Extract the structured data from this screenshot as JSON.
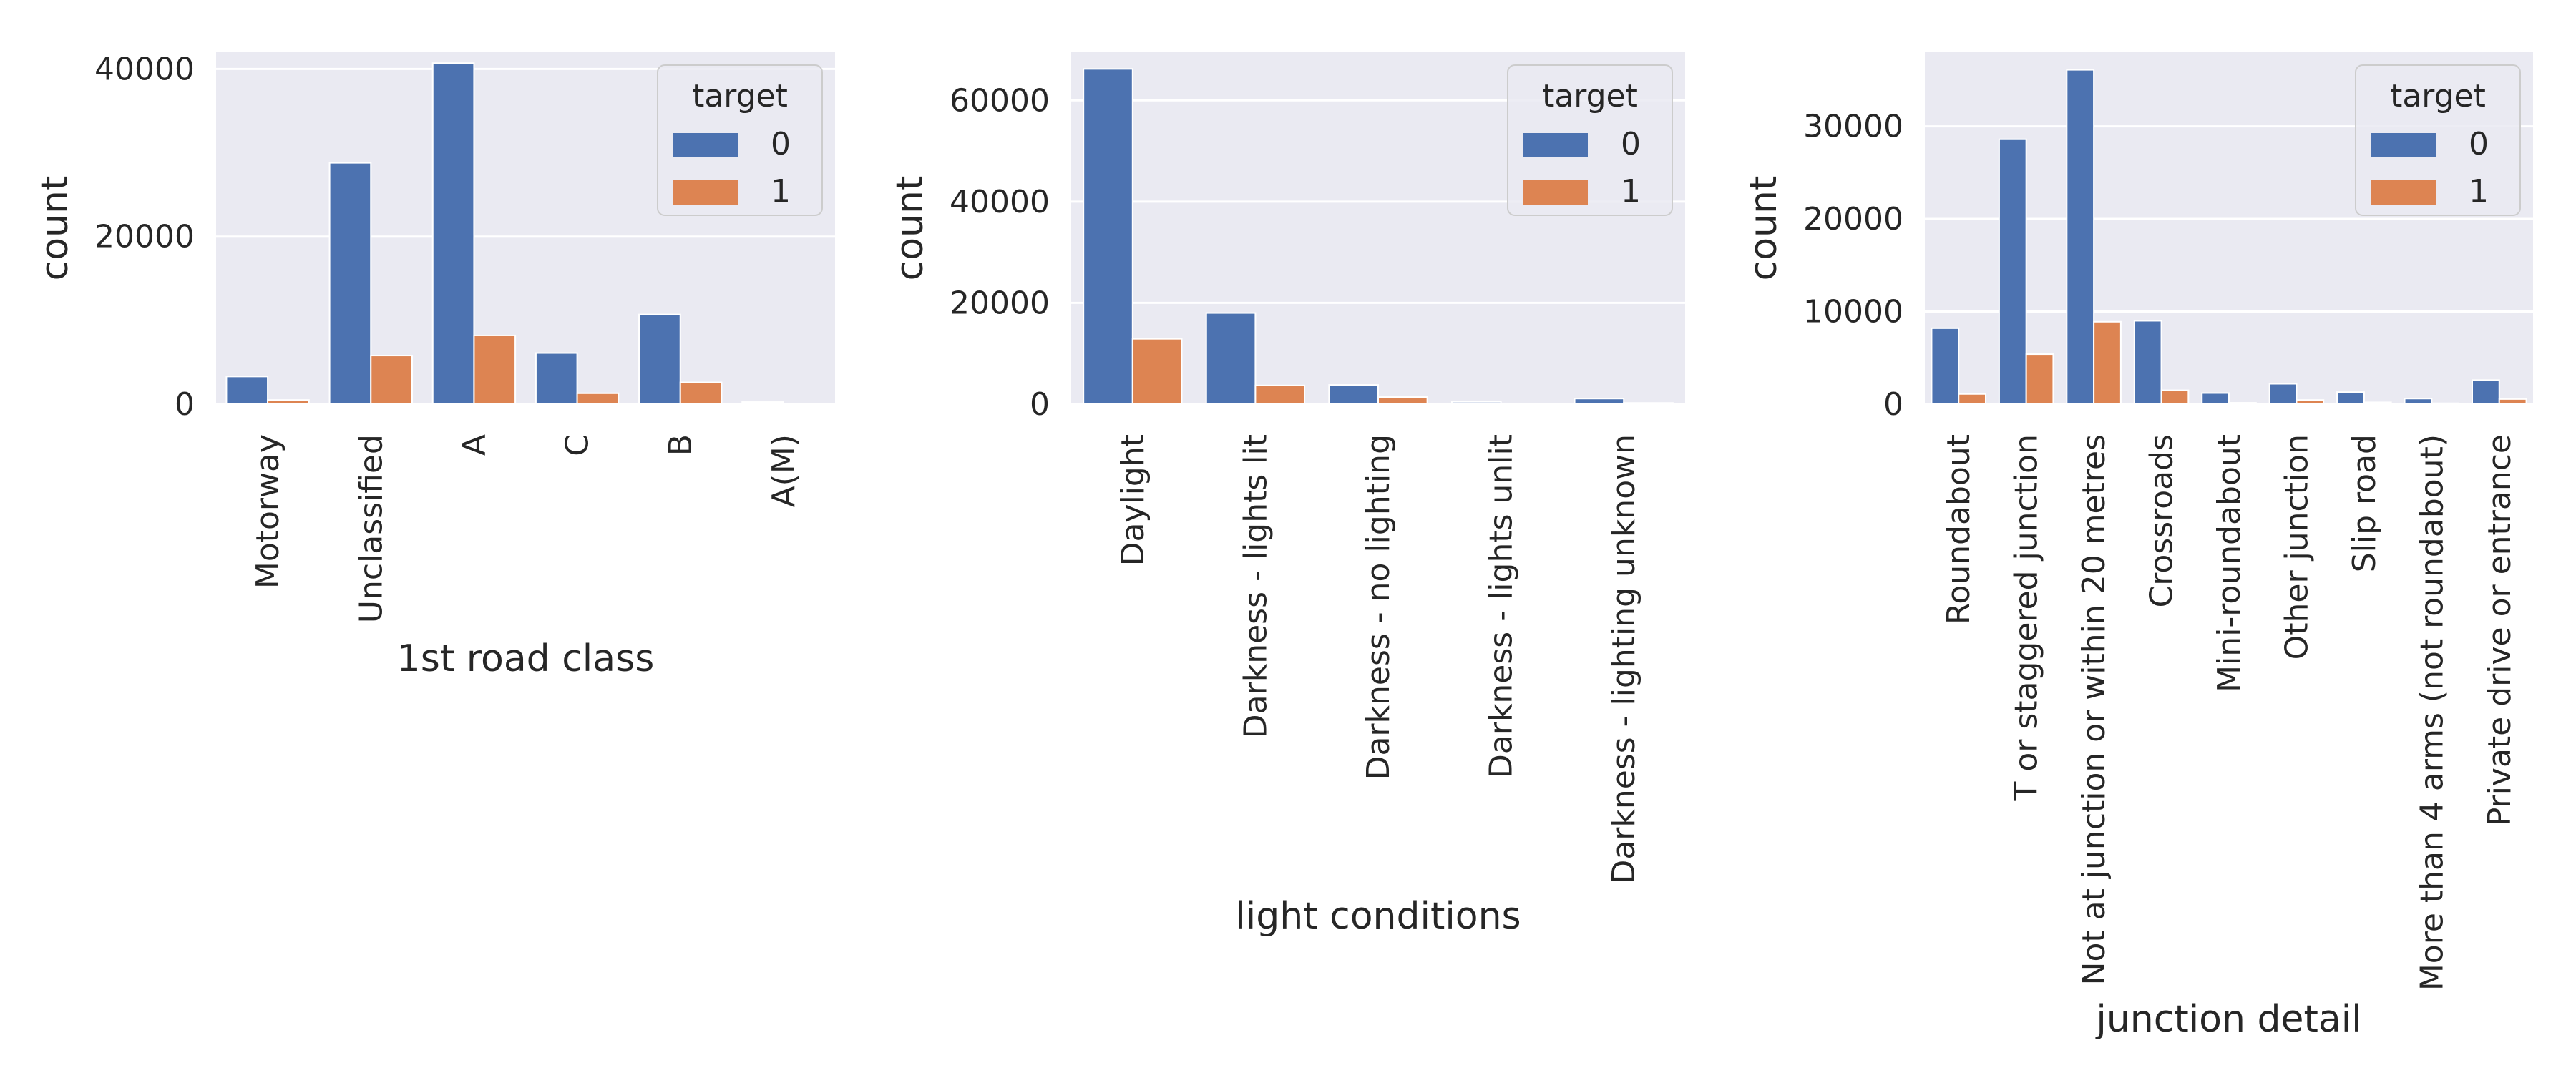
{
  "legend_title": "target",
  "colors": {
    "0": "#4C72B0",
    "1": "#DD8452",
    "plot_bg": "#EAEAF2",
    "grid": "#FFFFFF"
  },
  "chart_data": [
    {
      "type": "bar",
      "xlabel": "1st road class",
      "ylabel": "count",
      "ylim": [
        0,
        42000
      ],
      "yticks": [
        0,
        20000,
        40000
      ],
      "grid": true,
      "legend_position": "top-right",
      "categories": [
        "Motorway",
        "Unclassified",
        "A",
        "C",
        "B",
        "A(M)"
      ],
      "series": [
        {
          "name": "0",
          "values": [
            3300,
            28800,
            40700,
            6100,
            10700,
            250
          ]
        },
        {
          "name": "1",
          "values": [
            500,
            5800,
            8200,
            1300,
            2600,
            50
          ]
        }
      ]
    },
    {
      "type": "bar",
      "xlabel": "light conditions",
      "ylabel": "count",
      "ylim": [
        0,
        69500
      ],
      "yticks": [
        0,
        20000,
        40000,
        60000
      ],
      "grid": true,
      "legend_position": "top-right",
      "categories": [
        "Daylight",
        "Darkness - lights lit",
        "Darkness - no lighting",
        "Darkness - lights unlit",
        "Darkness - lighting unknown"
      ],
      "series": [
        {
          "name": "0",
          "values": [
            66200,
            18000,
            3800,
            450,
            1100
          ]
        },
        {
          "name": "1",
          "values": [
            12900,
            3700,
            1400,
            100,
            250
          ]
        }
      ]
    },
    {
      "type": "bar",
      "xlabel": "junction detail",
      "ylabel": "count",
      "ylim": [
        0,
        38000
      ],
      "yticks": [
        0,
        10000,
        20000,
        30000
      ],
      "grid": true,
      "legend_position": "top-right",
      "categories": [
        "Roundabout",
        "T or staggered junction",
        "Not at junction or within 20 metres",
        "Crossroads",
        "Mini-roundabout",
        "Other junction",
        "Slip road",
        "More than 4 arms (not roundabout)",
        "Private drive or entrance"
      ],
      "series": [
        {
          "name": "0",
          "values": [
            8200,
            28600,
            36100,
            9000,
            1200,
            2200,
            1300,
            600,
            2600
          ]
        },
        {
          "name": "1",
          "values": [
            1100,
            5400,
            8900,
            1500,
            150,
            450,
            200,
            100,
            550
          ]
        }
      ]
    }
  ]
}
